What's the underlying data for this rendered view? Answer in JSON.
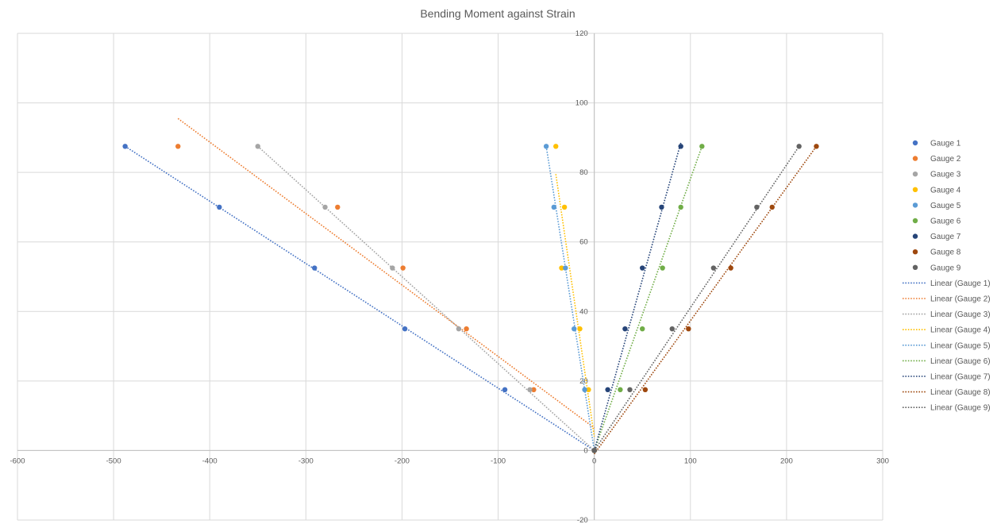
{
  "chart_data": {
    "type": "scatter",
    "title": "Bending Moment against Strain",
    "xlabel": "",
    "ylabel": "",
    "xlim": [
      -600,
      300
    ],
    "ylim": [
      -20,
      120
    ],
    "xticks": [
      -600,
      -500,
      -400,
      -300,
      -200,
      -100,
      0,
      100,
      200,
      300
    ],
    "yticks": [
      -20,
      0,
      20,
      40,
      60,
      80,
      100,
      120
    ],
    "grid": true,
    "legend_position": "right",
    "series": [
      {
        "name": "Gauge 1",
        "color": "#4472C4",
        "x": [
          0,
          -93,
          -197,
          -291,
          -390,
          -488
        ],
        "y": [
          0,
          17.5,
          35,
          52.5,
          70,
          87.5
        ]
      },
      {
        "name": "Gauge 2",
        "color": "#ED7D31",
        "x": [
          0,
          -63,
          -133,
          -199,
          -267,
          -433
        ],
        "y": [
          0,
          17.5,
          35,
          52.5,
          70,
          87.5
        ]
      },
      {
        "name": "Gauge 3",
        "color": "#A5A5A5",
        "x": [
          0,
          -67,
          -141,
          -210,
          -280,
          -350
        ],
        "y": [
          0,
          17.5,
          35,
          52.5,
          70,
          87.5
        ]
      },
      {
        "name": "Gauge 4",
        "color": "#FFC000",
        "x": [
          0,
          -6,
          -15,
          -34,
          -31,
          -40
        ],
        "y": [
          0,
          17.5,
          35,
          52.5,
          70,
          87.5
        ]
      },
      {
        "name": "Gauge 5",
        "color": "#5B9BD5",
        "x": [
          0,
          -10,
          -21,
          -30,
          -42,
          -50
        ],
        "y": [
          0,
          17.5,
          35,
          52.5,
          70,
          87.5
        ]
      },
      {
        "name": "Gauge 6",
        "color": "#70AD47",
        "x": [
          0,
          27,
          50,
          71,
          90,
          112
        ],
        "y": [
          0,
          17.5,
          35,
          52.5,
          70,
          87.5
        ]
      },
      {
        "name": "Gauge 7",
        "color": "#264478",
        "x": [
          0,
          14,
          32,
          50,
          70,
          90
        ],
        "y": [
          0,
          17.5,
          35,
          52.5,
          70,
          87.5
        ]
      },
      {
        "name": "Gauge 8",
        "color": "#9E480E",
        "x": [
          0,
          53,
          98,
          142,
          185,
          231
        ],
        "y": [
          0,
          17.5,
          35,
          52.5,
          70,
          87.5
        ]
      },
      {
        "name": "Gauge 9",
        "color": "#636363",
        "x": [
          0,
          37,
          81,
          124,
          169,
          213
        ],
        "y": [
          0,
          17.5,
          35,
          52.5,
          70,
          87.5
        ]
      }
    ],
    "trendlines": [
      {
        "name": "Linear (Gauge 1)",
        "color": "#4472C4",
        "x": [
          -488,
          0
        ],
        "y": [
          87.5,
          0
        ]
      },
      {
        "name": "Linear (Gauge 2)",
        "color": "#ED7D31",
        "x": [
          -433,
          0
        ],
        "y": [
          95.5,
          6.5
        ]
      },
      {
        "name": "Linear (Gauge 3)",
        "color": "#A5A5A5",
        "x": [
          -350,
          0
        ],
        "y": [
          87.5,
          0
        ]
      },
      {
        "name": "Linear (Gauge 4)",
        "color": "#FFC000",
        "x": [
          -40,
          0
        ],
        "y": [
          79.5,
          4
        ]
      },
      {
        "name": "Linear (Gauge 5)",
        "color": "#5B9BD5",
        "x": [
          -50,
          0
        ],
        "y": [
          87.5,
          0
        ]
      },
      {
        "name": "Linear (Gauge 6)",
        "color": "#70AD47",
        "x": [
          0,
          112
        ],
        "y": [
          0,
          87.5
        ]
      },
      {
        "name": "Linear (Gauge 7)",
        "color": "#264478",
        "x": [
          0,
          90
        ],
        "y": [
          0,
          88.5
        ]
      },
      {
        "name": "Linear (Gauge 8)",
        "color": "#9E480E",
        "x": [
          0,
          231
        ],
        "y": [
          -1,
          87.5
        ]
      },
      {
        "name": "Linear (Gauge 9)",
        "color": "#636363",
        "x": [
          0,
          213
        ],
        "y": [
          0,
          87.5
        ]
      }
    ]
  }
}
